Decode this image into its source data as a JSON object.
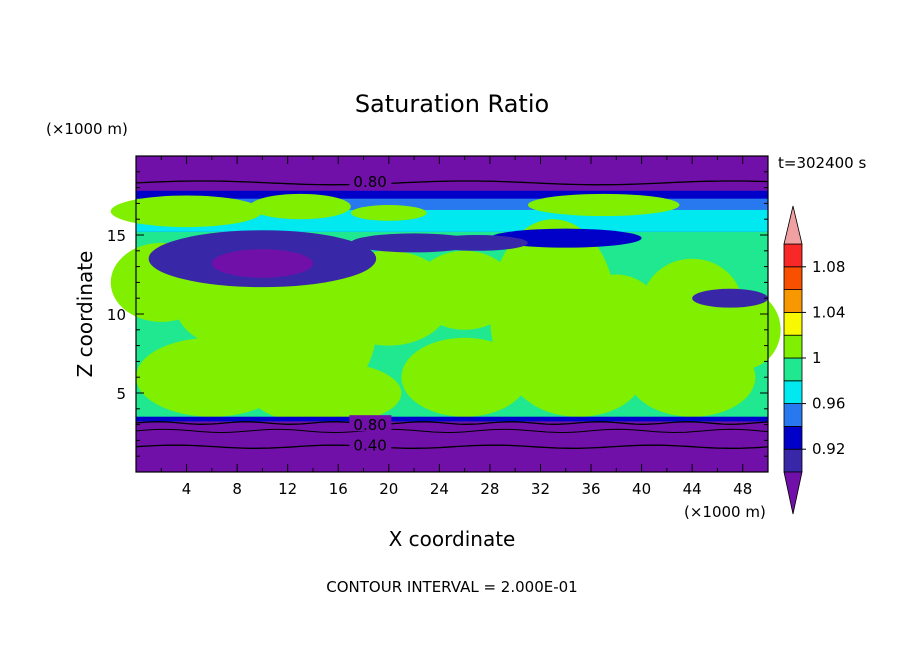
{
  "chart_data": {
    "type": "contour",
    "title": "Saturation Ratio",
    "xlabel": "X coordinate",
    "ylabel": "Z coordinate",
    "x_unit": "(×1000 m)",
    "y_unit": "(×1000 m)",
    "time_label": "t=302400 s",
    "footer": "CONTOUR INTERVAL = 2.000E-01",
    "xlim": [
      0,
      50
    ],
    "ylim": [
      0,
      20
    ],
    "x_ticks": [
      4,
      8,
      12,
      16,
      20,
      24,
      28,
      32,
      36,
      40,
      44,
      48
    ],
    "y_ticks": [
      5,
      10,
      15
    ],
    "contour_line_labels": [
      {
        "text": "0.80",
        "x": 17.2,
        "z": 18.3
      },
      {
        "text": "0.80",
        "x": 17.2,
        "z": 2.9
      },
      {
        "text": "0.40",
        "x": 17.2,
        "z": 1.6
      }
    ],
    "colorbar": {
      "levels": [
        0.9,
        0.92,
        0.94,
        0.96,
        0.98,
        1.0,
        1.02,
        1.04,
        1.06,
        1.08,
        1.1
      ],
      "tick_labels": [
        "0.92",
        "0.96",
        "1",
        "1.04",
        "1.08"
      ],
      "tick_values": [
        0.92,
        0.96,
        1.0,
        1.04,
        1.08
      ],
      "colors": [
        "#7010a8",
        "#3828a8",
        "#0000c8",
        "#2878f0",
        "#00e8f0",
        "#20e890",
        "#80f000",
        "#f8f800",
        "#f89800",
        "#f85000",
        "#f82828",
        "#f0a0a0"
      ],
      "below_color": "#7010a8",
      "above_color": "#f0a0a0"
    }
  }
}
